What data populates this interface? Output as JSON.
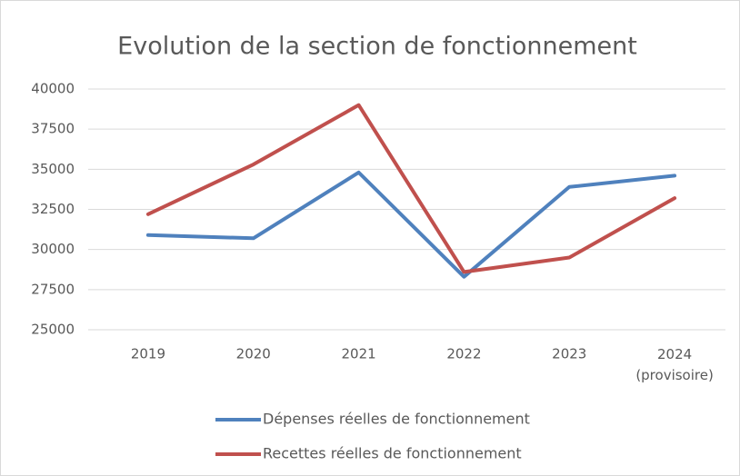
{
  "chart_data": {
    "type": "line",
    "title": "Evolution de la section de fonctionnement",
    "categories": [
      "2019",
      "2020",
      "2021",
      "2022",
      "2023",
      "2024 (provisoire)"
    ],
    "series": [
      {
        "name": "Dépenses réelles de fonctionnement",
        "color": "#4f81bd",
        "values": [
          30900,
          30700,
          34800,
          28300,
          33900,
          34600
        ]
      },
      {
        "name": "Recettes réelles de fonctionnement",
        "color": "#c0504d",
        "values": [
          32200,
          35300,
          39000,
          28600,
          29500,
          33200
        ]
      }
    ],
    "ylim": [
      25000,
      40000
    ],
    "yticks": [
      25000,
      27500,
      30000,
      32500,
      35000,
      37500,
      40000
    ],
    "grid": true,
    "legend": "bottom"
  }
}
